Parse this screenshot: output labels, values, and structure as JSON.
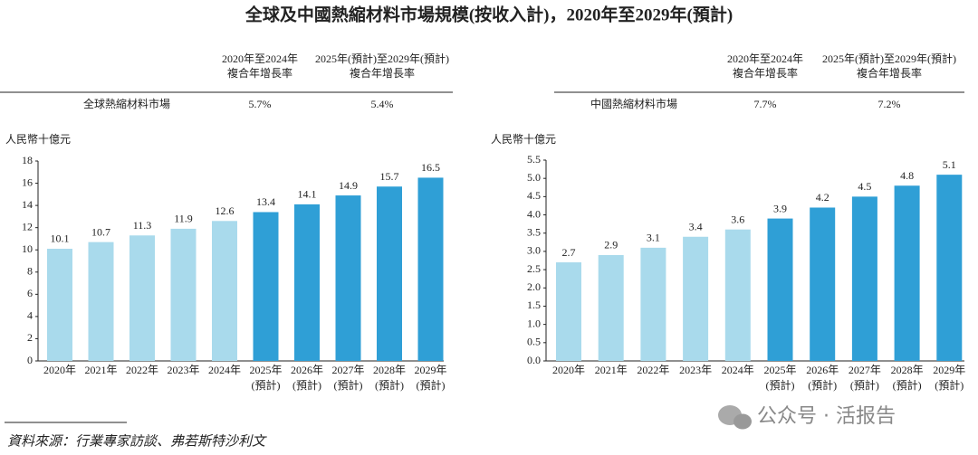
{
  "title": "全球及中國熱縮材料市場規模(按收入計)，2020年至2029年(預計)",
  "chart_data": [
    {
      "type": "bar",
      "cagr_table": {
        "headers": [
          [
            "2020年至2024年",
            "複合年增長率"
          ],
          [
            "2025年(預計)至2029年(預計)",
            "複合年增長率"
          ]
        ],
        "row_label": "全球熱縮材料市場",
        "values": [
          "5.7%",
          "5.4%"
        ]
      },
      "y_label": "人民幣十億元",
      "categories": [
        [
          "2020年"
        ],
        [
          "2021年"
        ],
        [
          "2022年"
        ],
        [
          "2023年"
        ],
        [
          "2024年"
        ],
        [
          "2025年",
          "(預計)"
        ],
        [
          "2026年",
          "(預計)"
        ],
        [
          "2027年",
          "(預計)"
        ],
        [
          "2028年",
          "(預計)"
        ],
        [
          "2029年",
          "(預計)"
        ]
      ],
      "values": [
        10.1,
        10.7,
        11.3,
        11.9,
        12.6,
        13.4,
        14.1,
        14.9,
        15.7,
        16.5
      ],
      "colors": [
        "#a9daec",
        "#a9daec",
        "#a9daec",
        "#a9daec",
        "#a9daec",
        "#2f9fd6",
        "#2f9fd6",
        "#2f9fd6",
        "#2f9fd6",
        "#2f9fd6"
      ],
      "ylim": [
        0,
        18
      ],
      "yticks": [
        0,
        2,
        4,
        6,
        8,
        10,
        12,
        14,
        16,
        18
      ],
      "grid": false
    },
    {
      "type": "bar",
      "cagr_table": {
        "headers": [
          [
            "2020年至2024年",
            "複合年增長率"
          ],
          [
            "2025年(預計)至2029年(預計)",
            "複合年增長率"
          ]
        ],
        "row_label": "中國熱縮材料市場",
        "values": [
          "7.7%",
          "7.2%"
        ]
      },
      "y_label": "人民幣十億元",
      "categories": [
        [
          "2020年"
        ],
        [
          "2021年"
        ],
        [
          "2022年"
        ],
        [
          "2023年"
        ],
        [
          "2024年"
        ],
        [
          "2025年",
          "(預計)"
        ],
        [
          "2026年",
          "(預計)"
        ],
        [
          "2027年",
          "(預計)"
        ],
        [
          "2028年",
          "(預計)"
        ],
        [
          "2029年",
          "(預計)"
        ]
      ],
      "values": [
        2.7,
        2.9,
        3.1,
        3.4,
        3.6,
        3.9,
        4.2,
        4.5,
        4.8,
        5.1
      ],
      "colors": [
        "#a9daec",
        "#a9daec",
        "#a9daec",
        "#a9daec",
        "#a9daec",
        "#2f9fd6",
        "#2f9fd6",
        "#2f9fd6",
        "#2f9fd6",
        "#2f9fd6"
      ],
      "ylim": [
        0,
        5.5
      ],
      "yticks": [
        {
          "value": 0,
          "label": "0.0"
        },
        0.5,
        {
          "value": 1,
          "label": "1.0"
        },
        1.5,
        {
          "value": 2,
          "label": "2.0"
        },
        2.5,
        {
          "value": 3,
          "label": "3.0"
        },
        3.5,
        {
          "value": 4,
          "label": "4.0"
        },
        4.5,
        {
          "value": 5,
          "label": "5.0"
        },
        5.5
      ],
      "grid": false
    }
  ],
  "source": "資料來源：行業專家訪談、弗若斯特沙利文",
  "watermark": "公众号 · 活报告"
}
